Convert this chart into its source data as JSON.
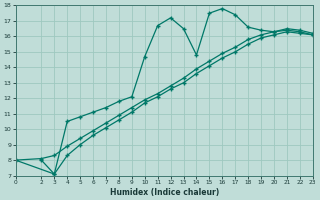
{
  "xlabel": "Humidex (Indice chaleur)",
  "bg_color": "#c0ddd8",
  "grid_color": "#9ec8c0",
  "line_color": "#007868",
  "xlim": [
    0,
    23
  ],
  "ylim": [
    7,
    18
  ],
  "xticks": [
    0,
    2,
    3,
    4,
    5,
    6,
    7,
    8,
    9,
    10,
    11,
    12,
    13,
    14,
    15,
    16,
    17,
    18,
    19,
    20,
    21,
    22,
    23
  ],
  "yticks": [
    7,
    8,
    9,
    10,
    11,
    12,
    13,
    14,
    15,
    16,
    17,
    18
  ],
  "line1_x": [
    2,
    3,
    4,
    5,
    6,
    7,
    8,
    9,
    10,
    11,
    12,
    13,
    14,
    15,
    16,
    17,
    18,
    19,
    20,
    21,
    22,
    23
  ],
  "line1_y": [
    8.0,
    7.1,
    10.5,
    10.8,
    11.1,
    11.4,
    11.8,
    12.1,
    14.7,
    16.7,
    17.2,
    16.5,
    14.8,
    17.5,
    17.8,
    17.4,
    16.6,
    16.4,
    16.3,
    16.5,
    16.4,
    16.2
  ],
  "line2_x": [
    0,
    2,
    3,
    4,
    5,
    6,
    7,
    8,
    9,
    10,
    11,
    12,
    13,
    14,
    15,
    16,
    17,
    18,
    19,
    20,
    21,
    22,
    23
  ],
  "line2_y": [
    8.0,
    8.1,
    8.3,
    8.9,
    9.4,
    9.9,
    10.4,
    10.9,
    11.4,
    11.9,
    12.3,
    12.8,
    13.3,
    13.9,
    14.4,
    14.9,
    15.3,
    15.8,
    16.1,
    16.3,
    16.4,
    16.3,
    16.1
  ],
  "line3_x": [
    0,
    3,
    4,
    5,
    6,
    7,
    8,
    9,
    10,
    11,
    12,
    13,
    14,
    15,
    16,
    17,
    18,
    19,
    20,
    21,
    22,
    23
  ],
  "line3_y": [
    8.0,
    7.1,
    8.3,
    9.0,
    9.6,
    10.1,
    10.6,
    11.1,
    11.7,
    12.1,
    12.6,
    13.0,
    13.6,
    14.1,
    14.6,
    15.0,
    15.5,
    15.9,
    16.1,
    16.3,
    16.2,
    16.1
  ]
}
